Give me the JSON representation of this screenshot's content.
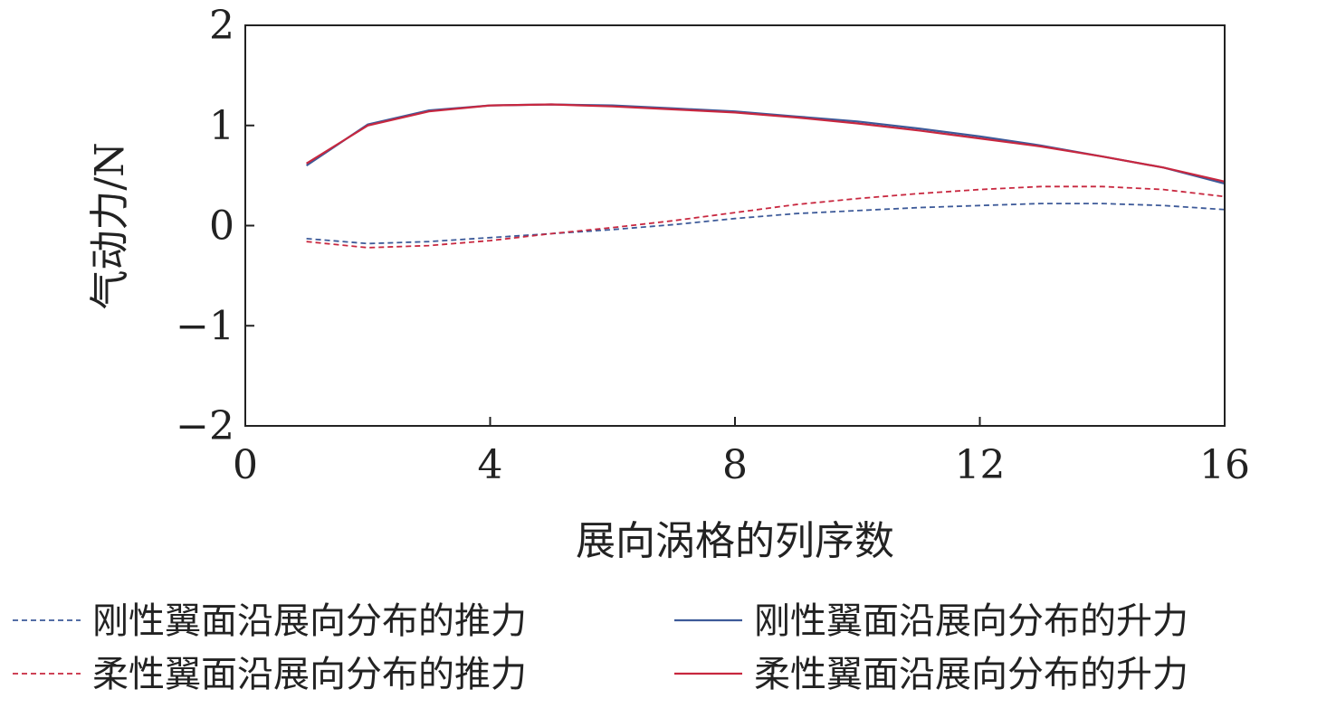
{
  "chart_data": {
    "type": "line",
    "xlabel": "展向涡格的列序数",
    "ylabel": "气动力/N",
    "xlim": [
      0,
      16
    ],
    "ylim": [
      -2,
      2
    ],
    "xticks": [
      0,
      4,
      8,
      12,
      16
    ],
    "yticks": [
      2,
      1,
      0,
      -1,
      -2
    ],
    "ytick_labels": [
      "2",
      "1",
      "0",
      "−1",
      "−2"
    ],
    "grid": false,
    "legend_placement": "bottom",
    "x": [
      1,
      2,
      3,
      4,
      5,
      6,
      7,
      8,
      9,
      10,
      11,
      12,
      13,
      14,
      15,
      16
    ],
    "series": [
      {
        "name": "刚性翼面沿展向分布的推力",
        "style": "dashed",
        "color": "#3d5a99",
        "values": [
          -0.13,
          -0.18,
          -0.16,
          -0.12,
          -0.08,
          -0.04,
          0.01,
          0.07,
          0.12,
          0.15,
          0.18,
          0.2,
          0.22,
          0.22,
          0.2,
          0.16
        ]
      },
      {
        "name": "柔性翼面沿展向分布的推力",
        "style": "dashed",
        "color": "#c8273f",
        "values": [
          -0.16,
          -0.22,
          -0.2,
          -0.15,
          -0.08,
          -0.02,
          0.05,
          0.13,
          0.21,
          0.27,
          0.32,
          0.36,
          0.39,
          0.39,
          0.36,
          0.29
        ]
      },
      {
        "name": "刚性翼面沿展向分布的升力",
        "style": "solid",
        "color": "#3d5a99",
        "values": [
          0.6,
          1.01,
          1.15,
          1.2,
          1.21,
          1.2,
          1.17,
          1.14,
          1.09,
          1.04,
          0.97,
          0.89,
          0.8,
          0.69,
          0.58,
          0.42
        ]
      },
      {
        "name": "柔性翼面沿展向分布的升力",
        "style": "solid",
        "color": "#c8273f",
        "values": [
          0.62,
          1.0,
          1.14,
          1.2,
          1.21,
          1.19,
          1.16,
          1.13,
          1.08,
          1.02,
          0.95,
          0.87,
          0.79,
          0.69,
          0.58,
          0.44
        ]
      }
    ]
  }
}
